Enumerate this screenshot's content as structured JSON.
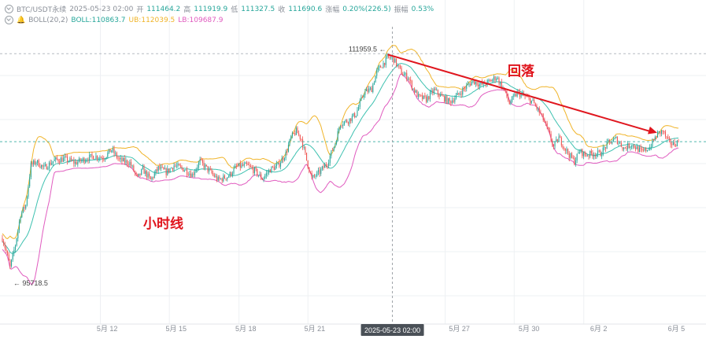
{
  "header": {
    "symbol": "BTC/USDT永续",
    "datetime": "2025-05-23 02:00",
    "open_label": "开",
    "open": "111464.2",
    "high_label": "高",
    "high": "111919.9",
    "low_label": "低",
    "low": "111327.5",
    "close_label": "收",
    "close": "111690.6",
    "change_label": "涨幅",
    "change": "0.20%(226.5)",
    "amp_label": "振幅",
    "amp": "0.53%",
    "indicator": "BOLL(20,2)",
    "boll_label": "BOLL:",
    "boll": "110863.7",
    "ub_label": "UB:",
    "ub": "112039.5",
    "lb_label": "LB:",
    "lb": "109687.9"
  },
  "annotations": {
    "timeframe": "小时线",
    "pullback": "回落",
    "high_marker": "111959.5",
    "low_marker": "95718.5",
    "crosshair_time": "2025-05-23 02:00"
  },
  "colors": {
    "up": "#26a69a",
    "down": "#ef5350",
    "boll": "#3ec1b0",
    "ub": "#f0b429",
    "lb": "#e05bbf",
    "arrow": "#e0161e",
    "annotation_text": "#e0161e",
    "grid": "#eef0f3",
    "axis_text": "#8a8f98"
  },
  "chart_data": {
    "type": "candlestick",
    "timeframe": "1h",
    "x_tick_labels": [
      "5月 12",
      "5月 15",
      "5月 18",
      "5月 21",
      "5月 27",
      "5月 30",
      "6月 2",
      "6月 5"
    ],
    "crosshair_label": "2025-05-23 02:00",
    "indicators": [
      "BOLL",
      "UB",
      "LB"
    ],
    "marked_high": 111959.5,
    "marked_low": 95718.5,
    "close_path": [
      [
        0,
        98000
      ],
      [
        3,
        97000
      ],
      [
        6,
        95800
      ],
      [
        10,
        97500
      ],
      [
        14,
        99800
      ],
      [
        18,
        100500
      ],
      [
        22,
        103500
      ],
      [
        26,
        103800
      ],
      [
        32,
        103300
      ],
      [
        40,
        103900
      ],
      [
        48,
        104000
      ],
      [
        56,
        103700
      ],
      [
        64,
        104000
      ],
      [
        70,
        104200
      ],
      [
        78,
        104100
      ],
      [
        84,
        104700
      ],
      [
        90,
        103900
      ],
      [
        98,
        103700
      ],
      [
        104,
        102500
      ],
      [
        108,
        103200
      ],
      [
        114,
        102400
      ],
      [
        120,
        103300
      ],
      [
        126,
        103000
      ],
      [
        132,
        103500
      ],
      [
        140,
        103200
      ],
      [
        146,
        102800
      ],
      [
        152,
        103800
      ],
      [
        158,
        103200
      ],
      [
        166,
        102400
      ],
      [
        174,
        102700
      ],
      [
        180,
        103400
      ],
      [
        188,
        103500
      ],
      [
        194,
        103100
      ],
      [
        200,
        102500
      ],
      [
        206,
        103200
      ],
      [
        212,
        103500
      ],
      [
        218,
        104400
      ],
      [
        222,
        105600
      ],
      [
        226,
        106100
      ],
      [
        230,
        105500
      ],
      [
        234,
        103900
      ],
      [
        238,
        102500
      ],
      [
        244,
        103000
      ],
      [
        250,
        103700
      ],
      [
        256,
        105200
      ],
      [
        260,
        106700
      ],
      [
        266,
        106900
      ],
      [
        272,
        107400
      ],
      [
        278,
        109000
      ],
      [
        284,
        109300
      ],
      [
        288,
        110600
      ],
      [
        292,
        111100
      ],
      [
        296,
        111600
      ],
      [
        300,
        111700
      ],
      [
        304,
        111000
      ],
      [
        308,
        110400
      ],
      [
        312,
        110200
      ],
      [
        316,
        109300
      ],
      [
        320,
        108700
      ],
      [
        326,
        108500
      ],
      [
        332,
        109200
      ],
      [
        338,
        108700
      ],
      [
        344,
        108300
      ],
      [
        350,
        108800
      ],
      [
        356,
        109400
      ],
      [
        362,
        109900
      ],
      [
        368,
        109600
      ],
      [
        374,
        109800
      ],
      [
        380,
        110200
      ],
      [
        386,
        109200
      ],
      [
        390,
        108200
      ],
      [
        396,
        109000
      ],
      [
        402,
        108700
      ],
      [
        408,
        108300
      ],
      [
        412,
        107700
      ],
      [
        416,
        107000
      ],
      [
        420,
        106000
      ],
      [
        424,
        104900
      ],
      [
        428,
        105600
      ],
      [
        432,
        104900
      ],
      [
        436,
        104300
      ],
      [
        440,
        103800
      ],
      [
        444,
        104600
      ],
      [
        448,
        104300
      ],
      [
        454,
        104400
      ],
      [
        460,
        104400
      ],
      [
        466,
        105200
      ],
      [
        472,
        105500
      ],
      [
        478,
        104800
      ],
      [
        484,
        105100
      ],
      [
        488,
        104800
      ],
      [
        492,
        104500
      ],
      [
        498,
        104900
      ],
      [
        504,
        105900
      ],
      [
        508,
        106100
      ],
      [
        512,
        105300
      ],
      [
        516,
        105100
      ],
      [
        520,
        105300
      ]
    ]
  }
}
